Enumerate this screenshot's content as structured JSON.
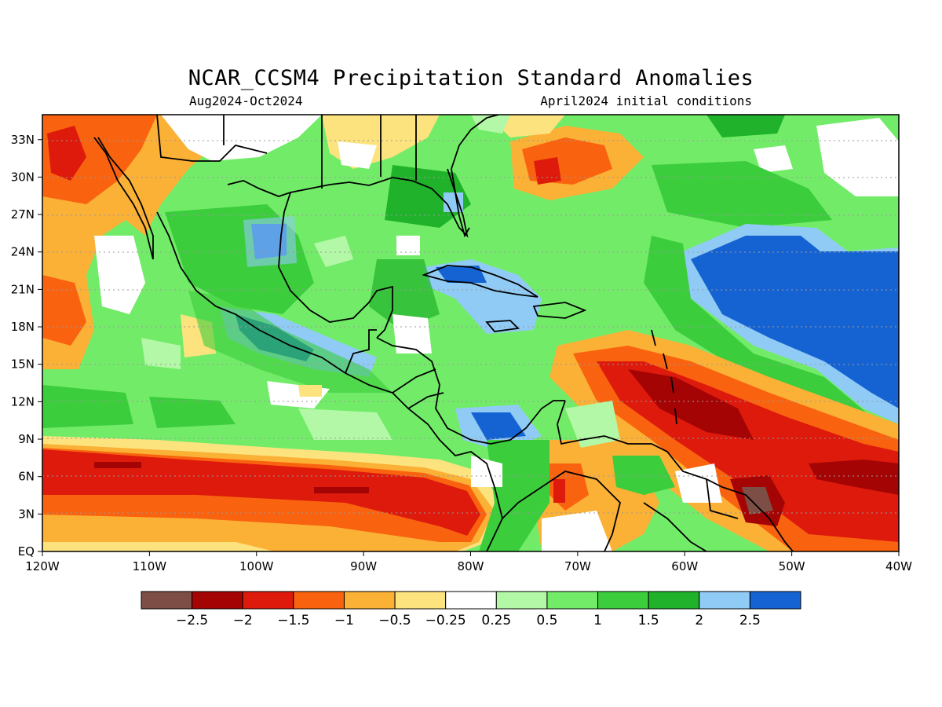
{
  "header": {
    "title": "NCAR_CCSM4 Precipitation Standard Anomalies",
    "period": "Aug2024-Oct2024",
    "init": "April2024 initial conditions"
  },
  "map": {
    "lon_range": [
      -120,
      -40
    ],
    "lat_range": [
      0,
      35
    ],
    "lon_ticks": [
      {
        "v": -120,
        "label": "120W"
      },
      {
        "v": -110,
        "label": "110W"
      },
      {
        "v": -100,
        "label": "100W"
      },
      {
        "v": -90,
        "label": "90W"
      },
      {
        "v": -80,
        "label": "80W"
      },
      {
        "v": -70,
        "label": "70W"
      },
      {
        "v": -60,
        "label": "60W"
      },
      {
        "v": -50,
        "label": "50W"
      },
      {
        "v": -40,
        "label": "40W"
      }
    ],
    "lat_ticks": [
      {
        "v": 0,
        "label": "EQ"
      },
      {
        "v": 3,
        "label": "3N"
      },
      {
        "v": 6,
        "label": "6N"
      },
      {
        "v": 9,
        "label": "9N"
      },
      {
        "v": 12,
        "label": "12N"
      },
      {
        "v": 15,
        "label": "15N"
      },
      {
        "v": 18,
        "label": "18N"
      },
      {
        "v": 21,
        "label": "21N"
      },
      {
        "v": 24,
        "label": "24N"
      },
      {
        "v": 27,
        "label": "27N"
      },
      {
        "v": 30,
        "label": "30N"
      },
      {
        "v": 33,
        "label": "33N"
      }
    ]
  },
  "colorbar": {
    "colors": [
      "#7d4e45",
      "#a50404",
      "#dd1a0c",
      "#f9630f",
      "#fbb036",
      "#fde37e",
      "#ffffff",
      "#b3f8a6",
      "#72ec68",
      "#3ccd3d",
      "#1fb22a",
      "#90cbf5",
      "#1563d2"
    ],
    "labels": [
      "-2.5",
      "-2",
      "-1.5",
      "-1",
      "-0.5",
      "-0.25",
      "0.25",
      "0.5",
      "1",
      "1.5",
      "2",
      "2.5"
    ]
  }
}
